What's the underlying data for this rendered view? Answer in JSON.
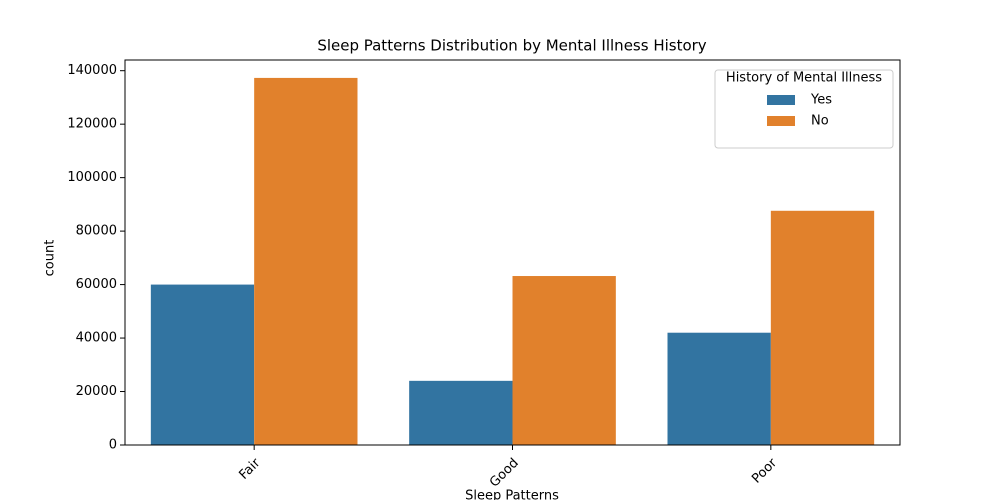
{
  "chart_data": {
    "type": "bar",
    "title": "Sleep Patterns Distribution by Mental Illness History",
    "x_label": "Sleep Patterns",
    "y_label": "count",
    "categories": [
      "Fair",
      "Good",
      "Poor"
    ],
    "series": [
      {
        "name": "Yes",
        "color": "#3274a1",
        "values": [
          60000,
          24000,
          42000
        ]
      },
      {
        "name": "No",
        "color": "#e1812c",
        "values": [
          137300,
          63200,
          87600
        ]
      }
    ],
    "legend_title": "History of Mental Illness",
    "legend": "upper right",
    "ylim": [
      0,
      144000
    ],
    "yticks": [
      0,
      20000,
      40000,
      60000,
      80000,
      100000,
      120000,
      140000
    ]
  }
}
